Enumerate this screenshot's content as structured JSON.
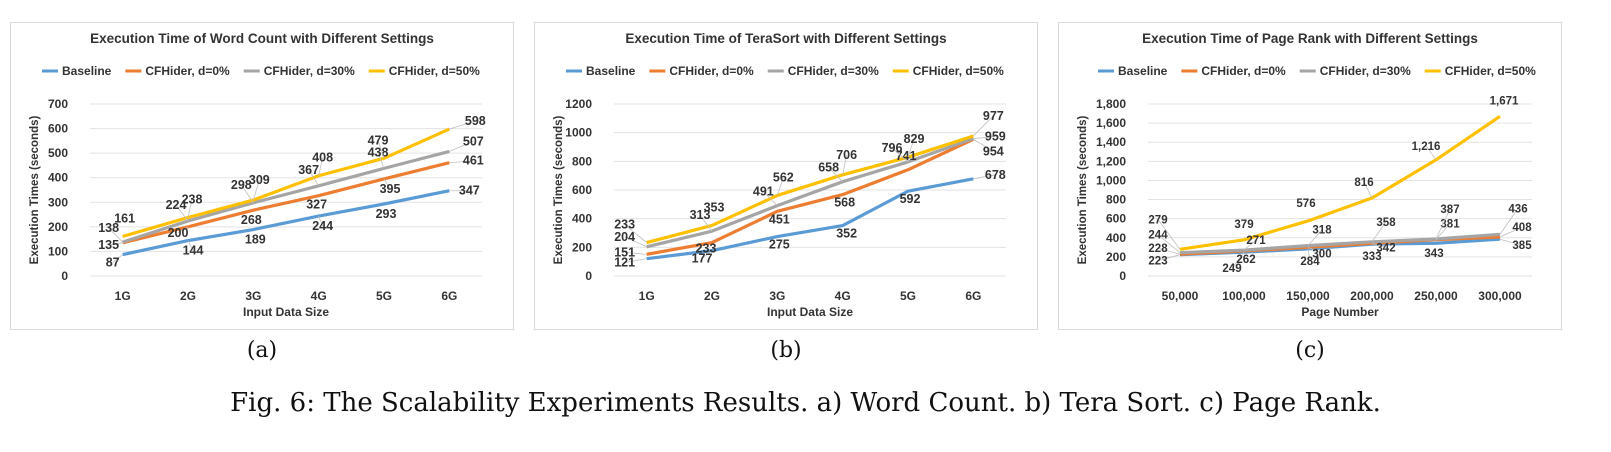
{
  "legend_colors": [
    "#5b9bd5",
    "#ed7d31",
    "#a5a5a5",
    "#ffc000"
  ],
  "chart_data": [
    {
      "type": "line",
      "title": "Execution Time of Word Count with Different Settings",
      "xlabel": "Input Data Size",
      "ylabel": "Execution Times (seconds)",
      "categories": [
        "1G",
        "2G",
        "3G",
        "4G",
        "5G",
        "6G"
      ],
      "ylim": [
        0,
        700
      ],
      "yticks": [
        "0",
        "100",
        "200",
        "300",
        "400",
        "500",
        "600",
        "700"
      ],
      "legend_position": "top",
      "grid": true,
      "series": [
        {
          "name": "Baseline",
          "values": [
            87,
            144,
            189,
            244,
            293,
            347
          ],
          "labels": [
            "87",
            "144",
            "189",
            "244",
            "293",
            "347"
          ]
        },
        {
          "name": "CFHider, d=0%",
          "values": [
            135,
            200,
            268,
            327,
            395,
            461
          ],
          "labels": [
            "135",
            "200",
            "268",
            "327",
            "395",
            "461"
          ]
        },
        {
          "name": "CFHider, d=30%",
          "values": [
            138,
            224,
            298,
            367,
            438,
            507
          ],
          "labels": [
            "138",
            "224",
            "298",
            "367",
            "438",
            "507"
          ]
        },
        {
          "name": "CFHider, d=50%",
          "values": [
            161,
            238,
            309,
            408,
            479,
            598
          ],
          "labels": [
            "161",
            "238",
            "309",
            "408",
            "479",
            "598"
          ]
        }
      ]
    },
    {
      "type": "line",
      "title": "Execution Time of TeraSort with Different Settings",
      "xlabel": "Input Data Size",
      "ylabel": "Execution Times (seconds)",
      "categories": [
        "1G",
        "2G",
        "3G",
        "4G",
        "5G",
        "6G"
      ],
      "ylim": [
        0,
        1200
      ],
      "yticks": [
        "0",
        "200",
        "400",
        "600",
        "800",
        "1000",
        "1200"
      ],
      "legend_position": "top",
      "grid": true,
      "series": [
        {
          "name": "Baseline",
          "values": [
            121,
            177,
            275,
            352,
            592,
            678
          ],
          "labels": [
            "121",
            "177",
            "275",
            "352",
            "592",
            "678"
          ]
        },
        {
          "name": "CFHider, d=0%",
          "values": [
            151,
            233,
            451,
            568,
            741,
            954
          ],
          "labels": [
            "151",
            "233",
            "451",
            "568",
            "741",
            "954"
          ]
        },
        {
          "name": "CFHider, d=30%",
          "values": [
            204,
            313,
            491,
            658,
            796,
            959
          ],
          "labels": [
            "204",
            "313",
            "491",
            "658",
            "796",
            "959"
          ]
        },
        {
          "name": "CFHider, d=50%",
          "values": [
            233,
            353,
            562,
            706,
            829,
            977
          ],
          "labels": [
            "233",
            "353",
            "562",
            "706",
            "829",
            "977"
          ]
        }
      ]
    },
    {
      "type": "line",
      "title": "Execution Time of Page Rank with Different Settings",
      "xlabel": "Page Number",
      "ylabel": "Execution Times (seconds)",
      "categories": [
        "50,000",
        "100,000",
        "150,000",
        "200,000",
        "250,000",
        "300,000"
      ],
      "ylim": [
        0,
        1800
      ],
      "yticks": [
        "0",
        "200",
        "400",
        "600",
        "800",
        "1,000",
        "1,200",
        "1,400",
        "1,600",
        "1,800"
      ],
      "legend_position": "top",
      "grid": true,
      "series": [
        {
          "name": "Baseline",
          "values": [
            223,
            249,
            284,
            333,
            343,
            385
          ],
          "labels": [
            "223",
            "249",
            "284",
            "333",
            "343",
            "385"
          ]
        },
        {
          "name": "CFHider, d=0%",
          "values": [
            228,
            262,
            300,
            342,
            381,
            408
          ],
          "labels": [
            "228",
            "262",
            "300",
            "342",
            "381",
            "408"
          ]
        },
        {
          "name": "CFHider, d=30%",
          "values": [
            244,
            271,
            318,
            358,
            387,
            436
          ],
          "labels": [
            "244",
            "271",
            "318",
            "358",
            "387",
            "436"
          ]
        },
        {
          "name": "CFHider, d=50%",
          "values": [
            279,
            379,
            576,
            816,
            1216,
            1671
          ],
          "labels": [
            "279",
            "379",
            "576",
            "816",
            "1,216",
            "1,671"
          ]
        }
      ]
    }
  ],
  "subcaptions": [
    "(a)",
    "(b)",
    "(c)"
  ],
  "caption": "Fig. 6: The Scalability Experiments Results. a) Word Count. b) Tera Sort. c) Page Rank."
}
